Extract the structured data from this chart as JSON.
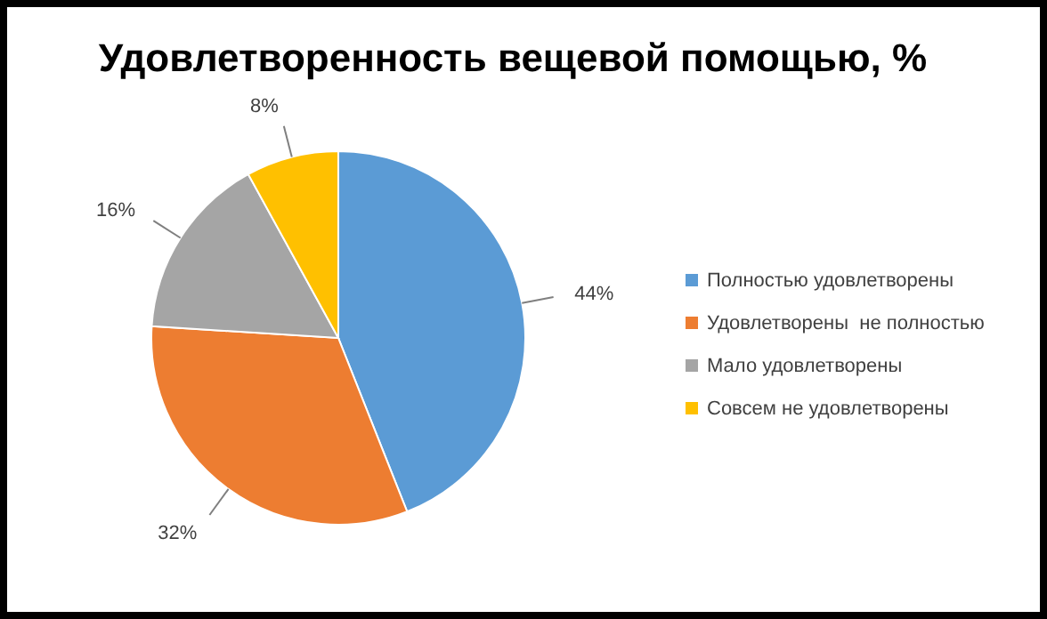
{
  "chart_data": {
    "type": "pie",
    "title": "Удовлетворенность вещевой помощью, %",
    "categories": [
      "Полностью удовлетворены",
      "Удовлетворены  не полностью",
      "Мало удовлетворены",
      "Совсем не удовлетворены"
    ],
    "values": [
      44,
      32,
      16,
      8
    ],
    "colors": [
      "#5b9bd5",
      "#ed7d31",
      "#a5a5a5",
      "#ffc000"
    ],
    "value_labels": [
      "44%",
      "32%",
      "16%",
      "8%"
    ],
    "legend": "right"
  }
}
